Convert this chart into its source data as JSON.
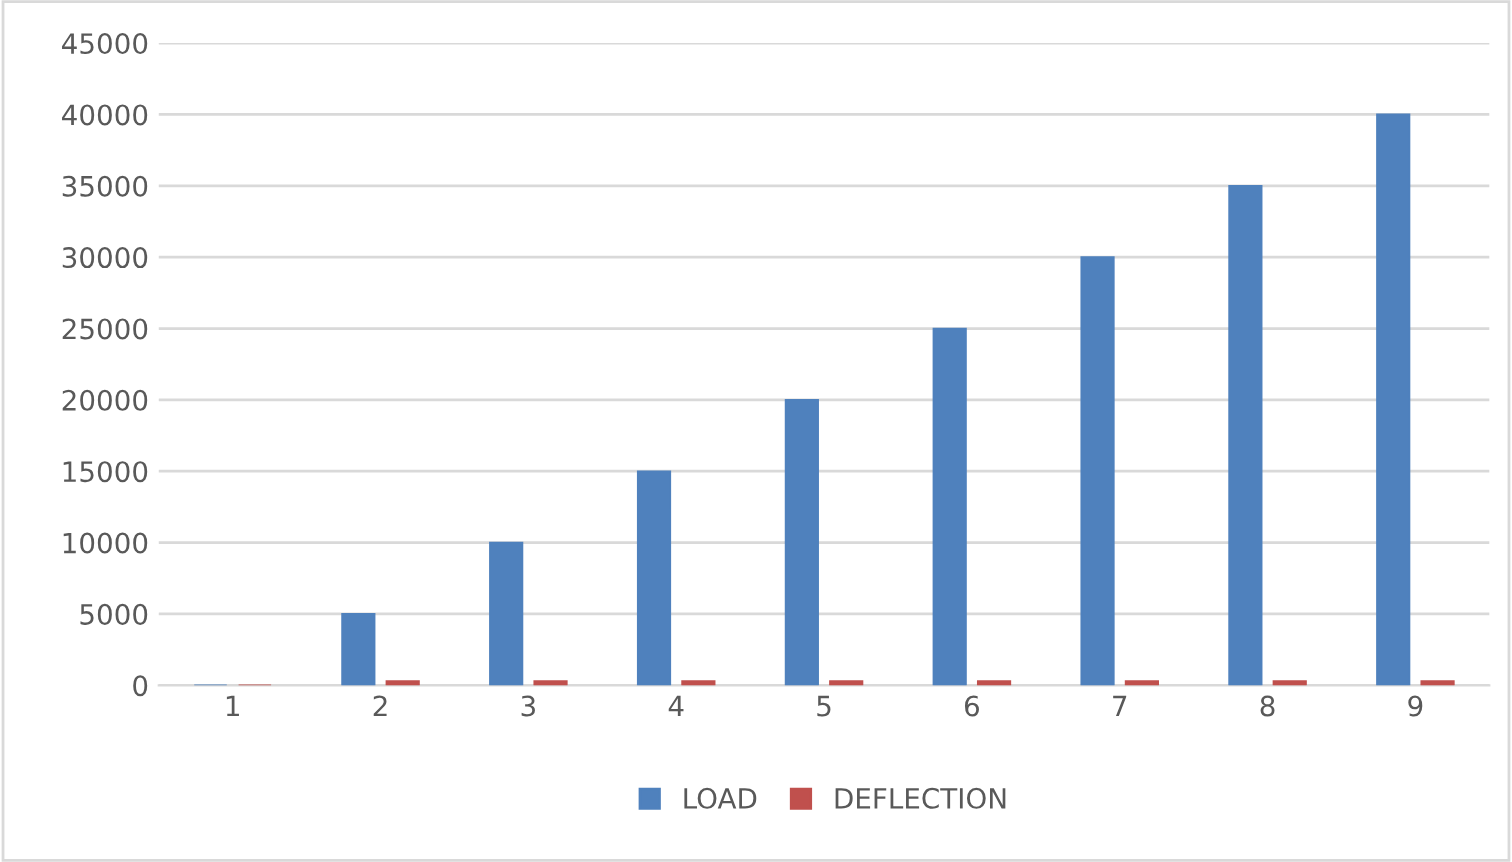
{
  "chart_data": {
    "type": "bar",
    "categories": [
      "1",
      "2",
      "3",
      "4",
      "5",
      "6",
      "7",
      "8",
      "9"
    ],
    "series": [
      {
        "name": "LOAD",
        "color": "#4f81bd",
        "values": [
          0,
          5000,
          10000,
          15000,
          20000,
          25000,
          30000,
          35000,
          40000
        ]
      },
      {
        "name": "DEFLECTION",
        "color": "#c0504d",
        "values": [
          0,
          300,
          300,
          300,
          300,
          300,
          300,
          300,
          300
        ]
      }
    ],
    "ylim": [
      0,
      45000
    ],
    "yticks": [
      0,
      5000,
      10000,
      15000,
      20000,
      25000,
      30000,
      35000,
      40000,
      45000
    ],
    "grid": "y",
    "legend": "bottom"
  }
}
